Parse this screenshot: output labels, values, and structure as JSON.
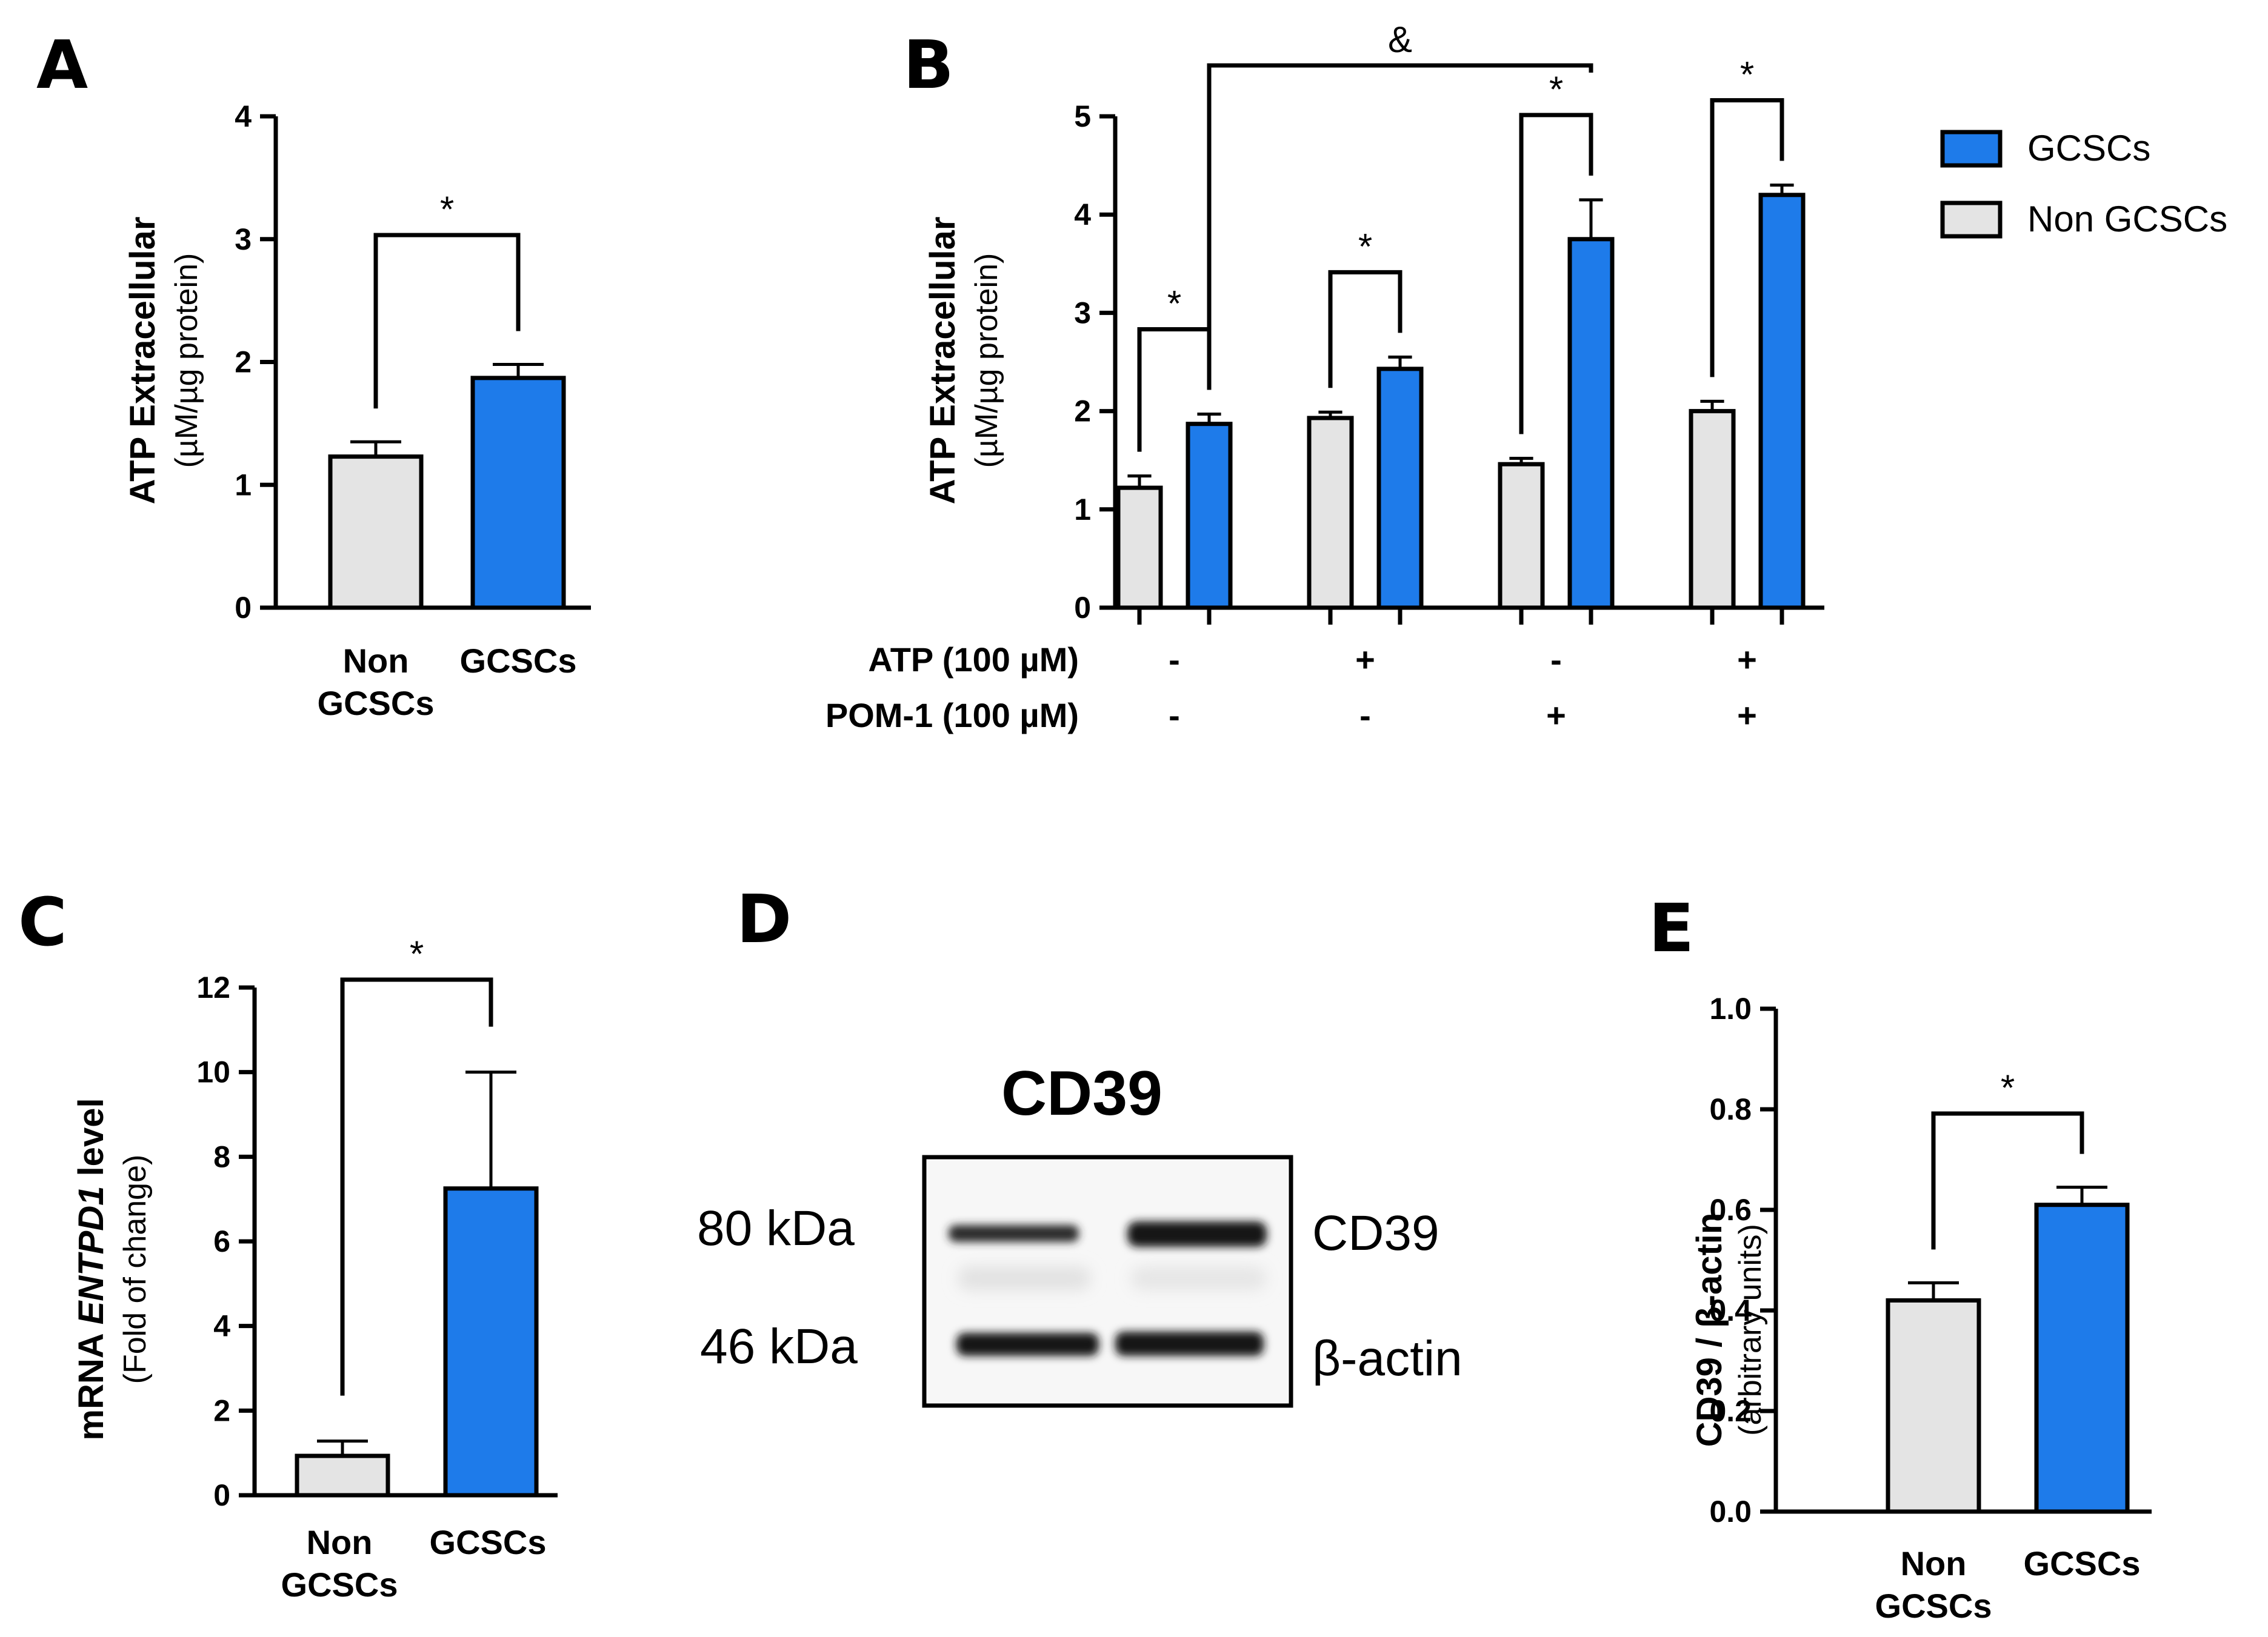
{
  "colors": {
    "gcsc": "#1E7BEA",
    "non_gcsc": "#E4E4E4",
    "stroke": "#000000"
  },
  "legend": {
    "items": [
      {
        "label": "GCSCs",
        "color": "#1E7BEA"
      },
      {
        "label": "Non GCSCs",
        "color": "#E4E4E4"
      }
    ]
  },
  "chart_data": [
    {
      "panel": "A",
      "type": "bar",
      "ylabel": "ATP Extracellular",
      "ylabel_sub": "(µM/µg protein)",
      "ylim": [
        0,
        4
      ],
      "yticks": [
        0,
        1,
        2,
        3,
        4
      ],
      "tick_labels": [
        "0",
        "1",
        "2",
        "3",
        "4"
      ],
      "categories": [
        [
          "Non",
          "GCSCs"
        ],
        [
          "GCSCs"
        ]
      ],
      "values": [
        1.23,
        1.87
      ],
      "errors": [
        0.12,
        0.11
      ],
      "significance": [
        {
          "between": [
            0,
            1
          ],
          "label": "*"
        }
      ]
    },
    {
      "panel": "B",
      "type": "bar",
      "ylabel": "ATP Extracellular",
      "ylabel_sub": "(µM/µg protein)",
      "ylim": [
        0,
        5
      ],
      "yticks": [
        0,
        1,
        2,
        3,
        4,
        5
      ],
      "tick_labels": [
        "0",
        "1",
        "2",
        "3",
        "4",
        "5"
      ],
      "treatment_rows": [
        {
          "label": "ATP (100 µM)",
          "values": [
            "-",
            "+",
            "-",
            "+"
          ]
        },
        {
          "label": "POM-1 (100 µM)",
          "values": [
            "-",
            "-",
            "+",
            "+"
          ]
        }
      ],
      "series": [
        {
          "name": "Non GCSCs",
          "values": [
            1.22,
            1.93,
            1.46,
            2.0
          ],
          "errors": [
            0.12,
            0.06,
            0.06,
            0.1
          ]
        },
        {
          "name": "GCSCs",
          "values": [
            1.87,
            2.43,
            3.75,
            4.2
          ],
          "errors": [
            0.1,
            0.12,
            0.4,
            0.1
          ]
        }
      ],
      "significance": [
        {
          "group": 0,
          "label": "*"
        },
        {
          "group": 1,
          "label": "*"
        },
        {
          "group": 2,
          "label": "*"
        },
        {
          "group": 3,
          "label": "*"
        },
        {
          "between_groups": [
            0,
            2
          ],
          "label": "&"
        }
      ]
    },
    {
      "panel": "C",
      "type": "bar",
      "ylabel_prefix": "mRNA ",
      "ylabel_italic": "ENTPD1",
      "ylabel_suffix": " level",
      "ylabel_sub": "(Fold of change)",
      "ylim": [
        0,
        12
      ],
      "yticks": [
        0,
        2,
        4,
        6,
        8,
        10,
        12
      ],
      "tick_labels": [
        "0",
        "2",
        "4",
        "6",
        "8",
        "10",
        "12"
      ],
      "categories": [
        [
          "Non",
          "GCSCs"
        ],
        [
          "GCSCs"
        ]
      ],
      "values": [
        0.93,
        7.25
      ],
      "errors": [
        0.35,
        2.75
      ],
      "significance": [
        {
          "between": [
            0,
            1
          ],
          "label": "*"
        }
      ]
    },
    {
      "panel": "E",
      "type": "bar",
      "ylabel": "CD39 / β-actin",
      "ylabel_sub": "(arbitrary units)",
      "ylim": [
        0,
        1
      ],
      "yticks": [
        0,
        0.2,
        0.4,
        0.6,
        0.8,
        1.0
      ],
      "tick_labels": [
        "0.0",
        "0.2",
        "0.4",
        "0.6",
        "0.8",
        "1.0"
      ],
      "categories": [
        [
          "Non",
          "GCSCs"
        ],
        [
          "GCSCs"
        ]
      ],
      "values": [
        0.42,
        0.61
      ],
      "errors": [
        0.035,
        0.035
      ],
      "significance": [
        {
          "between": [
            0,
            1
          ],
          "label": "*"
        }
      ]
    }
  ],
  "blot": {
    "panel": "D",
    "title": "CD39",
    "marker_labels": [
      "80 kDa",
      "46 kDa"
    ],
    "band_labels": [
      "CD39",
      "β-actin"
    ]
  }
}
